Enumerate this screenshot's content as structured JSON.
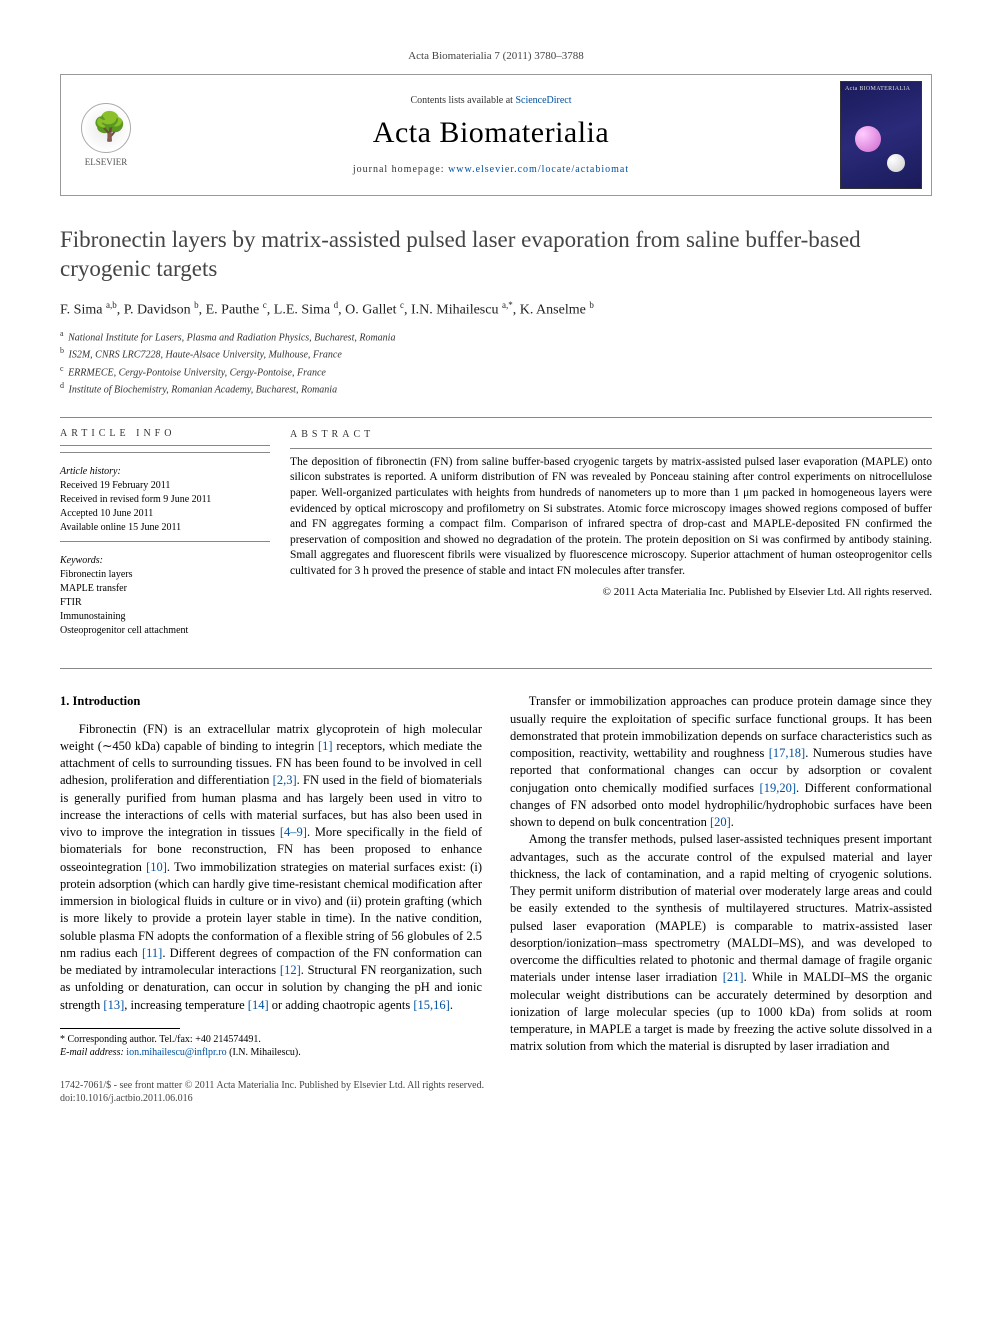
{
  "journal_ref": "Acta Biomaterialia 7 (2011) 3780–3788",
  "header": {
    "publisher": "ELSEVIER",
    "contents_prefix": "Contents lists available at ",
    "contents_link": "ScienceDirect",
    "journal_title": "Acta Biomaterialia",
    "homepage_prefix": "journal homepage: ",
    "homepage_url": "www.elsevier.com/locate/actabiomat",
    "cover_label": "Acta BIOMATERIALIA"
  },
  "title": "Fibronectin layers by matrix-assisted pulsed laser evaporation from saline buffer-based cryogenic targets",
  "authors_html": "F. Sima <sup>a,b</sup>, P. Davidson <sup>b</sup>, E. Pauthe <sup>c</sup>, L.E. Sima <sup>d</sup>, O. Gallet <sup>c</sup>, I.N. Mihailescu <sup>a,*</sup>, K. Anselme <sup>b</sup>",
  "affiliations": [
    {
      "sup": "a",
      "text": "National Institute for Lasers, Plasma and Radiation Physics, Bucharest, Romania"
    },
    {
      "sup": "b",
      "text": "IS2M, CNRS LRC7228, Haute-Alsace University, Mulhouse, France"
    },
    {
      "sup": "c",
      "text": "ERRMECE, Cergy-Pontoise University, Cergy-Pontoise, France"
    },
    {
      "sup": "d",
      "text": "Institute of Biochemistry, Romanian Academy, Bucharest, Romania"
    }
  ],
  "info": {
    "heading": "ARTICLE INFO",
    "history_label": "Article history:",
    "history": [
      "Received 19 February 2011",
      "Received in revised form 9 June 2011",
      "Accepted 10 June 2011",
      "Available online 15 June 2011"
    ],
    "keywords_label": "Keywords:",
    "keywords": [
      "Fibronectin layers",
      "MAPLE transfer",
      "FTIR",
      "Immunostaining",
      "Osteoprogenitor cell attachment"
    ]
  },
  "abstract": {
    "heading": "ABSTRACT",
    "text": "The deposition of fibronectin (FN) from saline buffer-based cryogenic targets by matrix-assisted pulsed laser evaporation (MAPLE) onto silicon substrates is reported. A uniform distribution of FN was revealed by Ponceau staining after control experiments on nitrocellulose paper. Well-organized particulates with heights from hundreds of nanometers up to more than 1 μm packed in homogeneous layers were evidenced by optical microscopy and profilometry on Si substrates. Atomic force microscopy images showed regions composed of buffer and FN aggregates forming a compact film. Comparison of infrared spectra of drop-cast and MAPLE-deposited FN confirmed the preservation of composition and showed no degradation of the protein. The protein deposition on Si was confirmed by antibody staining. Small aggregates and fluorescent fibrils were visualized by fluorescence microscopy. Superior attachment of human osteoprogenitor cells cultivated for 3 h proved the presence of stable and intact FN molecules after transfer.",
    "copyright": "© 2011 Acta Materialia Inc. Published by Elsevier Ltd. All rights reserved."
  },
  "section1": {
    "heading": "1. Introduction",
    "para1": "Fibronectin (FN) is an extracellular matrix glycoprotein of high molecular weight (∼450 kDa) capable of binding to integrin [1] receptors, which mediate the attachment of cells to surrounding tissues. FN has been found to be involved in cell adhesion, proliferation and differentiation [2,3]. FN used in the field of biomaterials is generally purified from human plasma and has largely been used in vitro to increase the interactions of cells with material surfaces, but has also been used in vivo to improve the integration in tissues [4–9]. More specifically in the field of biomaterials for bone reconstruction, FN has been proposed to enhance osseointegration [10]. Two immobilization strategies on material surfaces exist: (i) protein adsorption (which can hardly give time-resistant chemical modification after immersion in biological fluids in culture or in vivo) and (ii) protein grafting (which is more likely to provide a protein layer stable in time). In the native condition, soluble plasma FN adopts the conformation of a flexible string of 56 globules of 2.5 nm radius each [11]. Different degrees of compaction of the FN conformation can be mediated by intramolecular interactions [12]. Structural FN reorganization, such as unfolding or denaturation, can occur in solution by changing the pH and ionic strength [13], increasing temperature [14] or adding chaotropic agents [15,16].",
    "para2": "Transfer or immobilization approaches can produce protein damage since they usually require the exploitation of specific surface functional groups. It has been demonstrated that protein immobilization depends on surface characteristics such as composition, reactivity, wettability and roughness [17,18]. Numerous studies have reported that conformational changes can occur by adsorption or covalent conjugation onto chemically modified surfaces [19,20]. Different conformational changes of FN adsorbed onto model hydrophilic/hydrophobic surfaces have been shown to depend on bulk concentration [20].",
    "para3": "Among the transfer methods, pulsed laser-assisted techniques present important advantages, such as the accurate control of the expulsed material and layer thickness, the lack of contamination, and a rapid melting of cryogenic solutions. They permit uniform distribution of material over moderately large areas and could be easily extended to the synthesis of multilayered structures. Matrix-assisted pulsed laser evaporation (MAPLE) is comparable to matrix-assisted laser desorption/ionization–mass spectrometry (MALDI–MS), and was developed to overcome the difficulties related to photonic and thermal damage of fragile organic materials under intense laser irradiation [21]. While in MALDI–MS the organic molecular weight distributions can be accurately determined by desorption and ionization of large molecular species (up to 1000 kDa) from solids at room temperature, in MAPLE a target is made by freezing the active solute dissolved in a matrix solution from which the material is disrupted by laser irradiation and"
  },
  "footnote": {
    "corresponding": "* Corresponding author. Tel./fax: +40 214574491.",
    "email_label": "E-mail address:",
    "email": "ion.mihailescu@inflpr.ro",
    "email_name": "(I.N. Mihailescu)."
  },
  "footer": {
    "issn": "1742-7061/$ - see front matter © 2011 Acta Materialia Inc. Published by Elsevier Ltd. All rights reserved.",
    "doi": "doi:10.1016/j.actbio.2011.06.016"
  },
  "colors": {
    "link": "#0050a0",
    "text": "#000000",
    "muted": "#444444",
    "rule": "#888888",
    "cover_bg": "#1a1a5a"
  }
}
